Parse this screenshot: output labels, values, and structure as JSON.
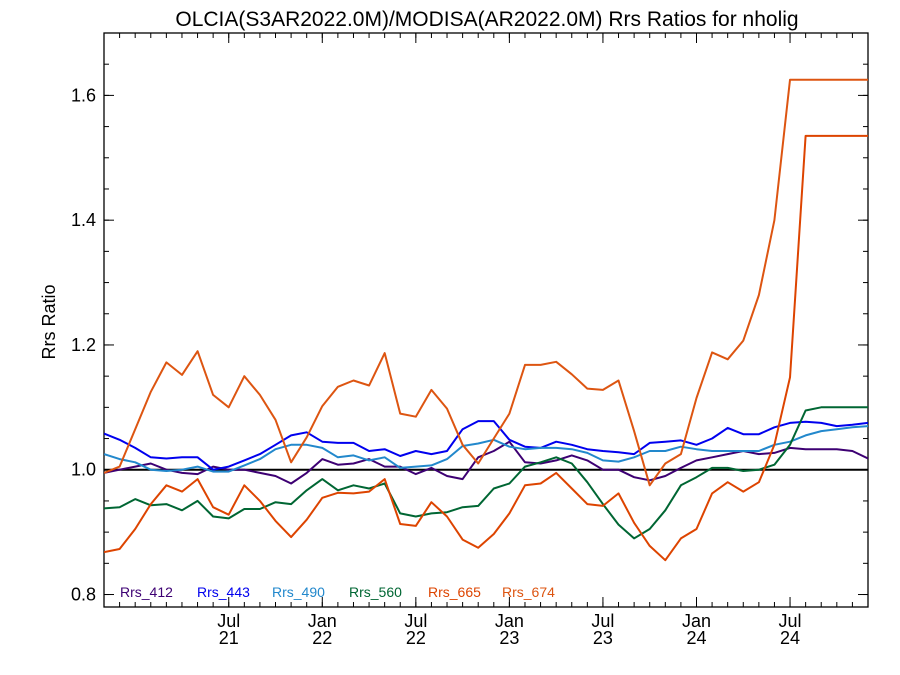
{
  "chart_data": {
    "type": "line",
    "title": "OLCIA(S3AR2022.0M)/MODISA(AR2022.0M)  Rrs Ratios for nholig",
    "xlabel": "",
    "ylabel": "Rrs Ratio",
    "xlim": [
      "2020-11",
      "2024-12"
    ],
    "ylim": [
      0.78,
      1.7
    ],
    "yticks": [
      "0.8",
      "1.0",
      "1.2",
      "1.4",
      "1.6"
    ],
    "xticks": [
      {
        "date": "2021-07",
        "label1": "Jul",
        "label2": "21"
      },
      {
        "date": "2022-01",
        "label1": "Jan",
        "label2": "22"
      },
      {
        "date": "2022-07",
        "label1": "Jul",
        "label2": "22"
      },
      {
        "date": "2023-01",
        "label1": "Jan",
        "label2": "23"
      },
      {
        "date": "2023-07",
        "label1": "Jul",
        "label2": "23"
      },
      {
        "date": "2024-01",
        "label1": "Jan",
        "label2": "24"
      },
      {
        "date": "2024-07",
        "label1": "Jul",
        "label2": "24"
      }
    ],
    "reference_line": 1.0,
    "legend_position": "bottom-left",
    "x": [
      "2020-11",
      "2020-12",
      "2021-01",
      "2021-02",
      "2021-03",
      "2021-04",
      "2021-05",
      "2021-06",
      "2021-07",
      "2021-08",
      "2021-09",
      "2021-10",
      "2021-11",
      "2021-12",
      "2022-01",
      "2022-02",
      "2022-03",
      "2022-04",
      "2022-05",
      "2022-06",
      "2022-07",
      "2022-08",
      "2022-09",
      "2022-10",
      "2022-11",
      "2022-12",
      "2023-01",
      "2023-02",
      "2023-03",
      "2023-04",
      "2023-05",
      "2023-06",
      "2023-07",
      "2023-08",
      "2023-09",
      "2023-10",
      "2023-11",
      "2023-12",
      "2024-01",
      "2024-02",
      "2024-03",
      "2024-04",
      "2024-05",
      "2024-06",
      "2024-07",
      "2024-08",
      "2024-09",
      "2024-10",
      "2024-11",
      "2024-12"
    ],
    "series": [
      {
        "name": "Rrs_412",
        "color": "#3d0073",
        "values": [
          0.995,
          1.0,
          1.005,
          1.01,
          1.0,
          0.995,
          0.993,
          1.005,
          1.0,
          1.0,
          0.995,
          0.99,
          0.978,
          0.995,
          1.017,
          1.008,
          1.01,
          1.017,
          1.005,
          1.005,
          0.993,
          1.003,
          0.99,
          0.985,
          1.02,
          1.03,
          1.045,
          1.012,
          1.01,
          1.015,
          1.023,
          1.015,
          1.0,
          1.0,
          0.988,
          0.983,
          0.99,
          1.003,
          1.015,
          1.02,
          1.025,
          1.03,
          1.025,
          1.027,
          1.035,
          1.033,
          1.033,
          1.033,
          1.03,
          1.018
        ]
      },
      {
        "name": "Rrs_443",
        "color": "#0000ee",
        "values": [
          1.058,
          1.048,
          1.035,
          1.02,
          1.018,
          1.02,
          1.02,
          1.0,
          1.005,
          1.015,
          1.025,
          1.04,
          1.055,
          1.06,
          1.045,
          1.043,
          1.043,
          1.03,
          1.033,
          1.022,
          1.03,
          1.025,
          1.03,
          1.065,
          1.078,
          1.078,
          1.048,
          1.037,
          1.035,
          1.045,
          1.04,
          1.033,
          1.03,
          1.028,
          1.025,
          1.043,
          1.045,
          1.047,
          1.04,
          1.05,
          1.067,
          1.057,
          1.057,
          1.068,
          1.075,
          1.077,
          1.075,
          1.07,
          1.072,
          1.075
        ]
      },
      {
        "name": "Rrs_490",
        "color": "#2288cc",
        "values": [
          1.025,
          1.017,
          1.012,
          1.0,
          0.998,
          1.0,
          1.005,
          0.997,
          0.997,
          1.007,
          1.017,
          1.033,
          1.04,
          1.04,
          1.035,
          1.02,
          1.023,
          1.015,
          1.02,
          1.003,
          1.005,
          1.007,
          1.017,
          1.038,
          1.042,
          1.048,
          1.037,
          1.033,
          1.035,
          1.035,
          1.033,
          1.027,
          1.015,
          1.013,
          1.02,
          1.03,
          1.03,
          1.037,
          1.033,
          1.03,
          1.03,
          1.03,
          1.03,
          1.04,
          1.045,
          1.055,
          1.062,
          1.065,
          1.068,
          1.07
        ]
      },
      {
        "name": "Rrs_560",
        "color": "#006633",
        "values": [
          0.938,
          0.94,
          0.953,
          0.943,
          0.945,
          0.935,
          0.95,
          0.925,
          0.922,
          0.937,
          0.937,
          0.948,
          0.945,
          0.967,
          0.985,
          0.967,
          0.975,
          0.97,
          0.978,
          0.93,
          0.925,
          0.93,
          0.932,
          0.94,
          0.942,
          0.97,
          0.978,
          1.005,
          1.012,
          1.02,
          1.01,
          0.98,
          0.945,
          0.912,
          0.89,
          0.905,
          0.935,
          0.975,
          0.988,
          1.003,
          1.003,
          0.998,
          1.0,
          1.008,
          1.04,
          1.095,
          1.1,
          1.1,
          1.1,
          1.1
        ]
      },
      {
        "name": "Rrs_665",
        "color": "#dd4400",
        "values": [
          0.868,
          0.873,
          0.905,
          0.945,
          0.975,
          0.965,
          0.985,
          0.94,
          0.928,
          0.975,
          0.95,
          0.918,
          0.892,
          0.92,
          0.955,
          0.963,
          0.962,
          0.965,
          0.985,
          0.913,
          0.91,
          0.948,
          0.925,
          0.888,
          0.875,
          0.897,
          0.93,
          0.975,
          0.978,
          0.995,
          0.97,
          0.945,
          0.942,
          0.962,
          0.915,
          0.878,
          0.855,
          0.89,
          0.905,
          0.962,
          0.98,
          0.965,
          0.98,
          1.04,
          1.148,
          1.535,
          1.535,
          1.535,
          1.535,
          1.535
        ]
      },
      {
        "name": "Rrs_674",
        "color": "#dd5511",
        "values": [
          0.995,
          1.005,
          1.065,
          1.125,
          1.172,
          1.152,
          1.19,
          1.12,
          1.1,
          1.15,
          1.12,
          1.08,
          1.012,
          1.052,
          1.102,
          1.133,
          1.143,
          1.135,
          1.187,
          1.09,
          1.085,
          1.128,
          1.098,
          1.04,
          1.01,
          1.05,
          1.09,
          1.168,
          1.168,
          1.173,
          1.153,
          1.13,
          1.128,
          1.143,
          1.062,
          0.975,
          1.01,
          1.025,
          1.115,
          1.188,
          1.177,
          1.207,
          1.28,
          1.4,
          1.625,
          1.625,
          1.625,
          1.625,
          1.625,
          1.625
        ]
      }
    ]
  }
}
